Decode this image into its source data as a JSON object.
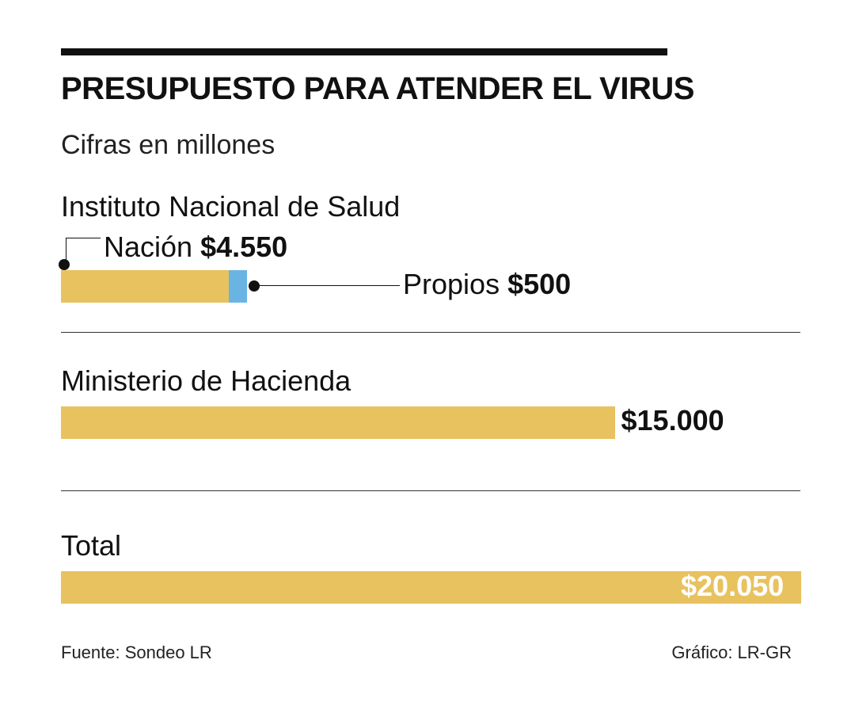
{
  "chart_data": {
    "type": "bar",
    "title": "PRESUPUESTO PARA ATENDER EL VIRUS",
    "subtitle": "Cifras en millones",
    "max_value": 20050,
    "groups": [
      {
        "name": "Instituto Nacional de Salud",
        "segments": [
          {
            "name": "Nación",
            "value": 4550,
            "label": "$4.550",
            "color": "#e8c25f"
          },
          {
            "name": "Propios",
            "value": 500,
            "label": "$500",
            "color": "#6ab4e3"
          }
        ]
      },
      {
        "name": "Ministerio de Hacienda",
        "segments": [
          {
            "name": "Ministerio de Hacienda",
            "value": 15000,
            "label": "$15.000",
            "color": "#e8c25f"
          }
        ]
      },
      {
        "name": "Total",
        "segments": [
          {
            "name": "Total",
            "value": 20050,
            "label": "$20.050",
            "color": "#e8c25f"
          }
        ]
      }
    ]
  },
  "footer": {
    "source": "Fuente: Sondeo LR",
    "credit": "Gráfico: LR-GR"
  }
}
